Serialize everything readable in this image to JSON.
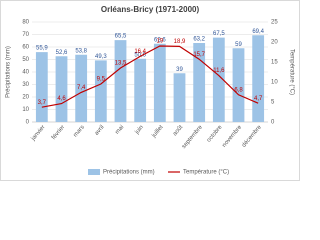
{
  "chart_data": {
    "type": "combo",
    "title": "Orléans-Bricy (1971-2000)",
    "y_label": "Précipitations (mm)",
    "y2_label": "Température (°C)",
    "categories": [
      "janvier",
      "février",
      "mars",
      "avril",
      "mai",
      "juin",
      "juillet",
      "août",
      "septembre",
      "octobre",
      "novembre",
      "décembre"
    ],
    "series": [
      {
        "name": "Précipitations (mm)",
        "type": "bar",
        "color": "#9dc3e6",
        "values": [
          55.9,
          52.6,
          53.8,
          49.3,
          65.5,
          50.6,
          62.6,
          39,
          63.2,
          67.5,
          59,
          69.4
        ],
        "value_labels": [
          "55,9",
          "52,6",
          "53,8",
          "49,3",
          "65,5",
          "50,6",
          "62,6",
          "39",
          "63,2",
          "67,5",
          "59",
          "69,4"
        ]
      },
      {
        "name": "Température (°C)",
        "type": "line",
        "axis": "y2",
        "color": "#c00000",
        "values": [
          3.7,
          4.6,
          7.4,
          9.5,
          13.5,
          16.4,
          19,
          18.9,
          15.7,
          11.6,
          6.8,
          4.7
        ],
        "value_labels": [
          "3,7",
          "4,6",
          "7,4",
          "9,5",
          "13,5",
          "16,4",
          "19",
          "18,9",
          "15,7",
          "11,6",
          "6,8",
          "4,7"
        ]
      }
    ],
    "ylim": [
      0,
      80
    ],
    "yticks": [
      0,
      10,
      20,
      30,
      40,
      50,
      60,
      70,
      80
    ],
    "y2lim": [
      0,
      25
    ],
    "y2ticks": [
      0,
      5,
      10,
      15,
      20,
      25
    ],
    "grid": true,
    "legend": "bottom"
  }
}
